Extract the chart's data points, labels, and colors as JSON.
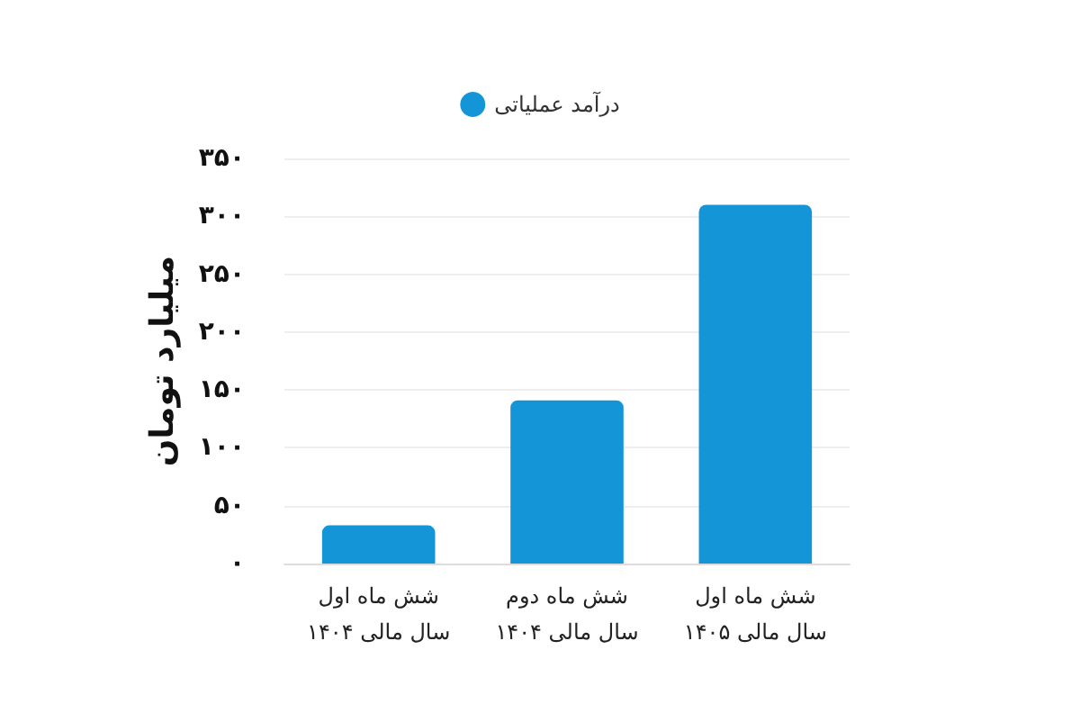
{
  "chart_data": {
    "type": "bar",
    "categories": [
      "شش ماه اول\nسال مالی ۱۴۰۴",
      "شش ماه دوم\nسال مالی ۱۴۰۴",
      "شش ماه اول\nسال مالی ۱۴۰۵"
    ],
    "series": [
      {
        "name": "درآمد عملیاتی",
        "color": "#1395d8",
        "values": [
          33,
          141,
          310
        ]
      }
    ],
    "ylabel": "میلیارد تومان",
    "ylim": [
      0,
      350
    ],
    "yticks": [
      {
        "value": 0,
        "label": "۰"
      },
      {
        "value": 50,
        "label": "۵۰"
      },
      {
        "value": 100,
        "label": "۱۰۰"
      },
      {
        "value": 150,
        "label": "۱۵۰"
      },
      {
        "value": 200,
        "label": "۲۰۰"
      },
      {
        "value": 250,
        "label": "۲۵۰"
      },
      {
        "value": 300,
        "label": "۳۰۰"
      },
      {
        "value": 350,
        "label": "۳۵۰"
      }
    ],
    "grid": "y",
    "legend": "top"
  }
}
